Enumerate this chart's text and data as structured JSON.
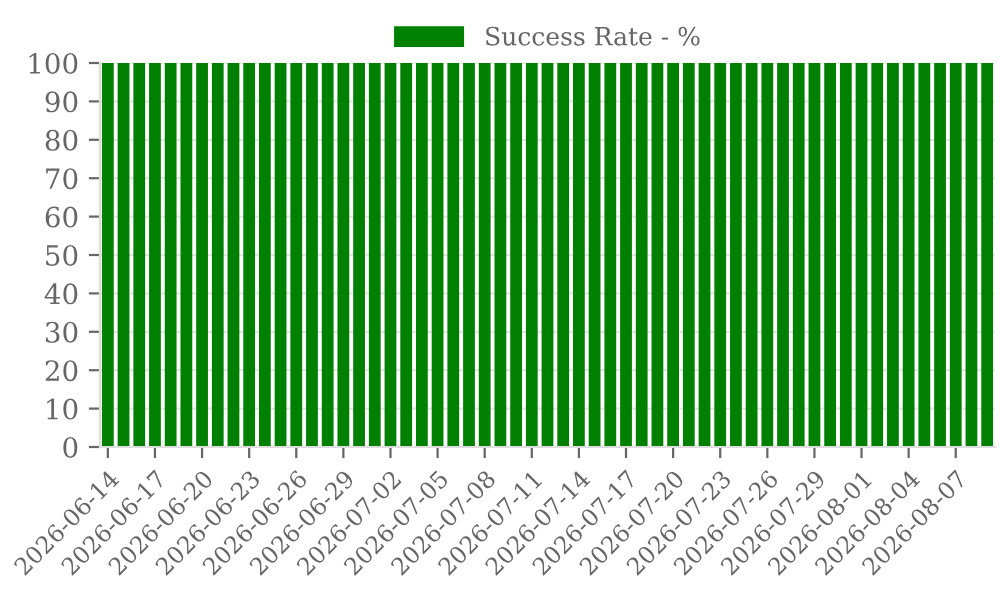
{
  "chart_data": {
    "type": "bar",
    "categories": [
      "2026-06-14",
      null,
      null,
      "2026-06-17",
      null,
      null,
      "2026-06-20",
      null,
      null,
      "2026-06-23",
      null,
      null,
      "2026-06-26",
      null,
      null,
      "2026-06-29",
      null,
      null,
      "2026-07-02",
      null,
      null,
      "2026-07-05",
      null,
      null,
      "2026-07-08",
      null,
      null,
      "2026-07-11",
      null,
      null,
      "2026-07-14",
      null,
      null,
      "2026-07-17",
      null,
      null,
      "2026-07-20",
      null,
      null,
      "2026-07-23",
      null,
      null,
      "2026-07-26",
      null,
      null,
      "2026-07-29",
      null,
      null,
      "2026-08-01",
      null,
      null,
      "2026-08-04",
      null,
      null,
      "2026-08-07",
      null,
      null
    ],
    "series": [
      {
        "name": "Success Rate - %",
        "color": "#008000",
        "values": [
          100,
          100,
          100,
          100,
          100,
          100,
          100,
          100,
          100,
          100,
          100,
          100,
          100,
          100,
          100,
          100,
          100,
          100,
          100,
          100,
          100,
          100,
          100,
          100,
          100,
          100,
          100,
          100,
          100,
          100,
          100,
          100,
          100,
          100,
          100,
          100,
          100,
          100,
          100,
          100,
          100,
          100,
          100,
          100,
          100,
          100,
          100,
          100,
          100,
          100,
          100,
          100,
          100,
          100,
          100,
          100,
          100
        ]
      }
    ],
    "ylim": [
      0,
      100
    ],
    "yticks": [
      0,
      10,
      20,
      30,
      40,
      50,
      60,
      70,
      80,
      90,
      100
    ],
    "grid": "y",
    "legend": "top"
  }
}
